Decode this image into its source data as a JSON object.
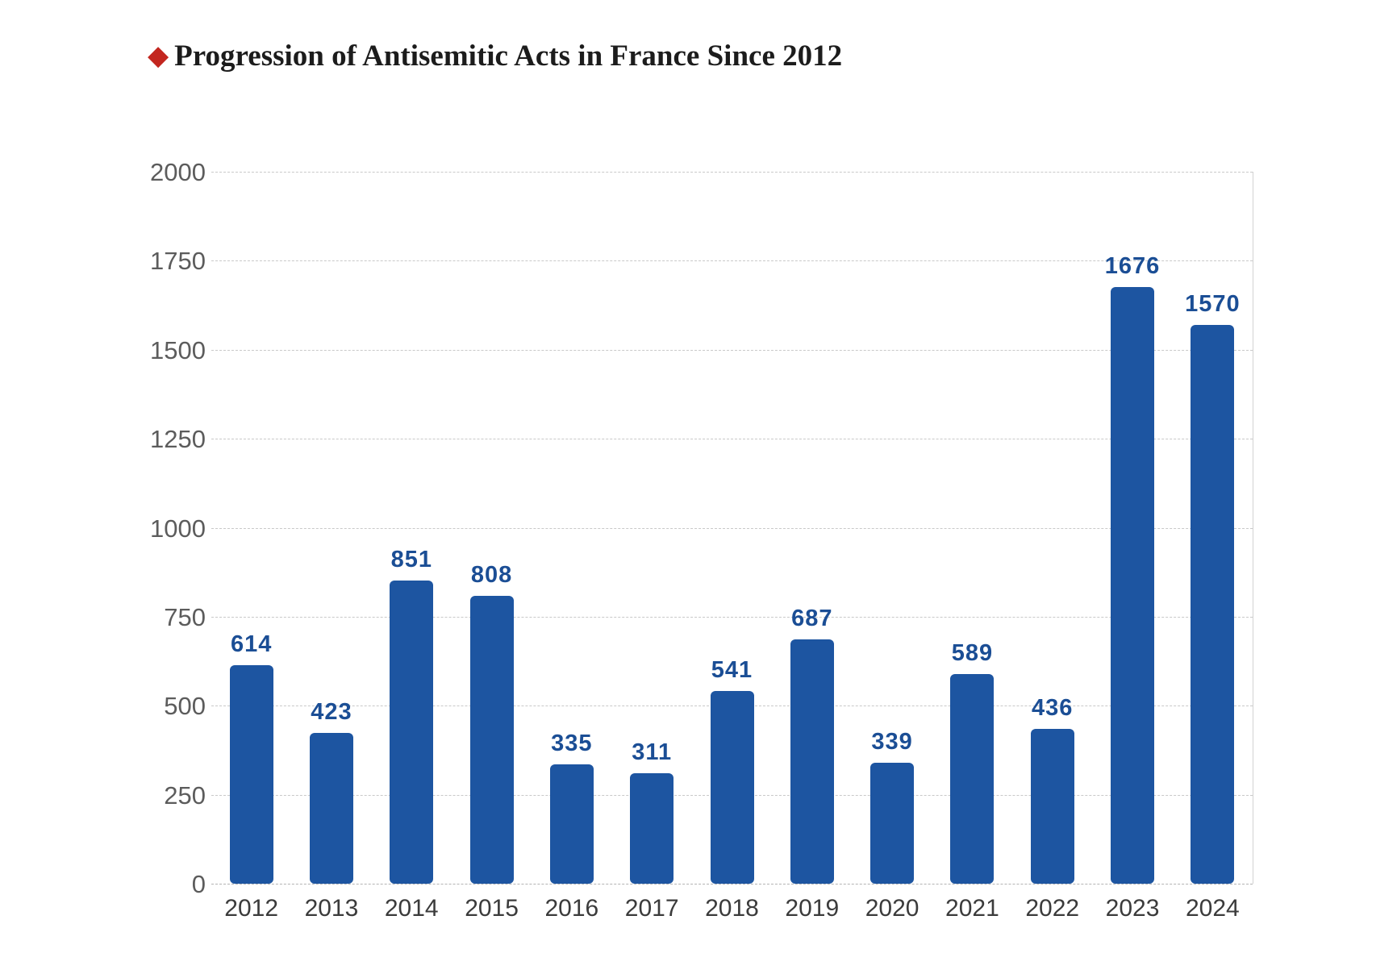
{
  "title": {
    "text": "Progression of Antisemitic Acts in France Since 2012",
    "bullet": "red-diamond",
    "bullet_glyph": "◆"
  },
  "colors": {
    "bar": "#1d55a1",
    "value_label": "#1b4e95",
    "title_text": "#1c1c1c",
    "diamond": "#c3261f",
    "y_axis_label": "#5c5c5c",
    "x_axis_label": "#3b3b3b",
    "gridline": "#c9c9c9",
    "background": "#ffffff"
  },
  "chart_data": {
    "type": "bar",
    "title": "Progression of Antisemitic Acts in France Since 2012",
    "categories": [
      "2012",
      "2013",
      "2014",
      "2015",
      "2016",
      "2017",
      "2018",
      "2019",
      "2020",
      "2021",
      "2022",
      "2023",
      "2024"
    ],
    "values": [
      614,
      423,
      851,
      808,
      335,
      311,
      541,
      687,
      339,
      589,
      436,
      1676,
      1570
    ],
    "xlabel": "",
    "ylabel": "",
    "ylim": [
      0,
      2000
    ],
    "yticks": [
      0,
      250,
      500,
      750,
      1000,
      1250,
      1500,
      1750,
      2000
    ],
    "grid": "horizontal-dashed",
    "legend": "none",
    "bar_value_labels": true
  }
}
